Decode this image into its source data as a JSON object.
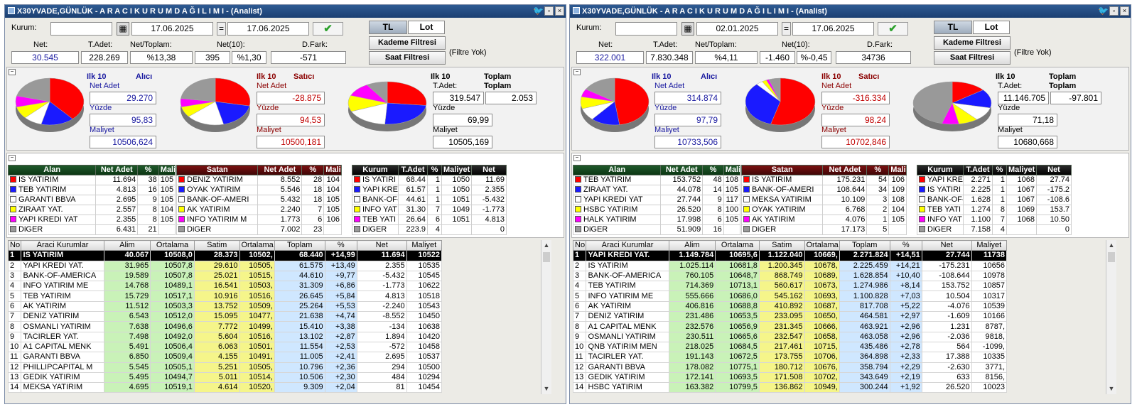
{
  "windows": [
    {
      "title": "X30YVADE,GÜNLÜK  -  A R A C I   K U R U M   D A Ğ I L I M I  - (Analist)",
      "kurum_label": "Kurum:",
      "date_from": "17.06.2025",
      "eq": "=",
      "date_to": "17.06.2025",
      "tl": "TL",
      "lot": "Lot",
      "kademe": "Kademe Filtresi",
      "saat": "Saat Filtresi",
      "filtre": "(Filtre Yok)",
      "stats": {
        "net_l": "Net:",
        "net": "30.545",
        "tadet_l": "T.Adet:",
        "tadet": "228.269",
        "nettop_l": "Net/Toplam:",
        "nettop": "%13,38",
        "net10_l": "Net(10):",
        "net10a": "395",
        "net10b": "%1,30",
        "dfark_l": "D.Fark:",
        "dfark": "-571"
      },
      "pies": {
        "alici": {
          "h1": "Ilk 10",
          "h2": "Alıcı",
          "na_l": "Net Adet",
          "na": "29.270",
          "y_l": "Yüzde",
          "y": "95,83",
          "m_l": "Maliyet",
          "m": "10506,624"
        },
        "satici": {
          "h1": "Ilk 10",
          "h2": "Satıcı",
          "na_l": "Net Adet",
          "na": "-28.875",
          "y_l": "Yüzde",
          "y": "94,53",
          "m_l": "Maliyet",
          "m": "10500,181"
        },
        "toplam": {
          "h1": "Ilk 10",
          "h2": "Toplam",
          "ta_l": "T.Adet:",
          "h3": "Toplam",
          "ta": "319.547",
          "tt": "2.053",
          "y_l": "Yüzde",
          "y": "69,99",
          "m_l": "Maliyet",
          "m": "10505,169"
        }
      },
      "alan_h": [
        "Alan",
        "Net Adet",
        "%",
        "Mali"
      ],
      "alan": [
        [
          "IS YATIRIM",
          "11.694",
          "38",
          "105"
        ],
        [
          "TEB YATIRIM",
          "4.813",
          "16",
          "105"
        ],
        [
          "GARANTI BBVA",
          "2.695",
          "9",
          "105"
        ],
        [
          "ZIRAAT YAT.",
          "2.557",
          "8",
          "104"
        ],
        [
          "YAPI KREDI YAT",
          "2.355",
          "8",
          "105"
        ],
        [
          "DiGER",
          "6.431",
          "21",
          ""
        ]
      ],
      "satan_h": [
        "Satan",
        "Net Adet",
        "%",
        "Mali"
      ],
      "satan": [
        [
          "DENIZ YATIRIM",
          "8.552",
          "28",
          "104"
        ],
        [
          "OYAK YATIRIM",
          "5.546",
          "18",
          "104"
        ],
        [
          "BANK-OF-AMERI",
          "5.432",
          "18",
          "105"
        ],
        [
          "AK YATIRIM",
          "2.240",
          "7",
          "105"
        ],
        [
          "INFO YATIRIM M",
          "1.773",
          "6",
          "106"
        ],
        [
          "DiGER",
          "7.002",
          "23",
          ""
        ]
      ],
      "kurum_h": [
        "Kurum",
        "T.Adet",
        "%",
        "Maliyet",
        "Net"
      ],
      "kurum": [
        [
          "IS YATIRI",
          "68.44",
          "1",
          "1050",
          "11.69"
        ],
        [
          "YAPI KRE",
          "61.57",
          "1",
          "1050",
          "2.355"
        ],
        [
          "BANK-OF-",
          "44.61",
          "1",
          "1051",
          "-5.432"
        ],
        [
          "INFO YAT",
          "31.30",
          "7",
          "1049",
          "-1.773"
        ],
        [
          "TEB YATI",
          "26.64",
          "6",
          "1051",
          "4.813"
        ],
        [
          "DiGER",
          "223.9",
          "4",
          "",
          "0"
        ]
      ],
      "list_h": [
        "No",
        "Araci Kurumlar",
        "Alim",
        "Ortalama",
        "Satim",
        "Ortalama",
        "Toplam",
        "%",
        "Net",
        "Maliyet"
      ],
      "list": [
        [
          "1",
          "IS YATIRIM",
          "40.067",
          "10508,0",
          "28.373",
          "10502,",
          "68.440",
          "+14,99",
          "11.694",
          "10522"
        ],
        [
          "2",
          "YAPI KREDI YAT.",
          "31.965",
          "10507,8",
          "29.610",
          "10505,",
          "61.575",
          "+13,49",
          "2.355",
          "10535"
        ],
        [
          "3",
          "BANK-OF-AMERICA",
          "19.589",
          "10507,8",
          "25.021",
          "10515,",
          "44.610",
          "+9,77",
          "-5.432",
          "10545"
        ],
        [
          "4",
          "INFO YATIRIM ME",
          "14.768",
          "10489,1",
          "16.541",
          "10503,",
          "31.309",
          "+6,86",
          "-1.773",
          "10622"
        ],
        [
          "5",
          "TEB YATIRIM",
          "15.729",
          "10517,1",
          "10.916",
          "10516,",
          "26.645",
          "+5,84",
          "4.813",
          "10518"
        ],
        [
          "6",
          "AK YATIRIM",
          "11.512",
          "10503,3",
          "13.752",
          "10509,",
          "25.264",
          "+5,53",
          "-2.240",
          "10543"
        ],
        [
          "7",
          "DENIZ YATIRIM",
          "6.543",
          "10512,0",
          "15.095",
          "10477,",
          "21.638",
          "+4,74",
          "-8.552",
          "10450"
        ],
        [
          "8",
          "OSMANLI YATIRIM",
          "7.638",
          "10496,6",
          "7.772",
          "10499,",
          "15.410",
          "+3,38",
          "-134",
          "10638"
        ],
        [
          "9",
          "TACIRLER YAT.",
          "7.498",
          "10492,0",
          "5.604",
          "10516,",
          "13.102",
          "+2,87",
          "1.894",
          "10420"
        ],
        [
          "10",
          "A1 CAPITAL MENK",
          "5.491",
          "10506,4",
          "6.063",
          "10501,",
          "11.554",
          "+2,53",
          "-572",
          "10458"
        ],
        [
          "11",
          "GARANTI BBVA",
          "6.850",
          "10509,4",
          "4.155",
          "10491,",
          "11.005",
          "+2,41",
          "2.695",
          "10537"
        ],
        [
          "12",
          "PHILLIPCAPITAL M",
          "5.545",
          "10505,1",
          "5.251",
          "10505,",
          "10.796",
          "+2,36",
          "294",
          "10500"
        ],
        [
          "13",
          "GEDIK YATIRIM",
          "5.495",
          "10494,7",
          "5.011",
          "10514,",
          "10.506",
          "+2,30",
          "484",
          "10294"
        ],
        [
          "14",
          "MEKSA YATIRIM",
          "4.695",
          "10519,1",
          "4.614",
          "10520,",
          "9.309",
          "+2,04",
          "81",
          "10454"
        ]
      ]
    },
    {
      "title": "X30YVADE,GÜNLÜK  -  A R A C I   K U R U M   D A Ğ I L I M I  - (Analist)",
      "kurum_label": "Kurum:",
      "date_from": "02.01.2025",
      "eq": "=",
      "date_to": "17.06.2025",
      "tl": "TL",
      "lot": "Lot",
      "kademe": "Kademe Filtresi",
      "saat": "Saat Filtresi",
      "filtre": "(Filtre Yok)",
      "stats": {
        "net_l": "Net:",
        "net": "322.001",
        "tadet_l": "T.Adet:",
        "tadet": "7.830.348",
        "nettop_l": "Net/Toplam:",
        "nettop": "%4,11",
        "net10_l": "Net(10):",
        "net10a": "-1.460",
        "net10b": "%-0,45",
        "dfark_l": "D.Fark:",
        "dfark": "34736"
      },
      "pies": {
        "alici": {
          "h1": "Ilk 10",
          "h2": "Alıcı",
          "na_l": "Net Adet",
          "na": "314.874",
          "y_l": "Yüzde",
          "y": "97,79",
          "m_l": "Maliyet",
          "m": "10733,506"
        },
        "satici": {
          "h1": "Ilk 10",
          "h2": "Satıcı",
          "na_l": "Net Adet",
          "na": "-316.334",
          "y_l": "Yüzde",
          "y": "98,24",
          "m_l": "Maliyet",
          "m": "10702,846"
        },
        "toplam": {
          "h1": "Ilk 10",
          "h2": "Toplam",
          "ta_l": "T.Adet:",
          "h3": "Toplam",
          "ta": "11.146.705",
          "tt": "-97.801",
          "y_l": "Yüzde",
          "y": "71,18",
          "m_l": "Maliyet",
          "m": "10680,668"
        }
      },
      "alan_h": [
        "Alan",
        "Net Adet",
        "%",
        "Mali"
      ],
      "alan": [
        [
          "TEB YATIRIM",
          "153.752",
          "48",
          "108"
        ],
        [
          "ZIRAAT YAT.",
          "44.078",
          "14",
          "105"
        ],
        [
          "YAPI KREDI YAT",
          "27.744",
          "9",
          "117"
        ],
        [
          "HSBC YATIRIM",
          "26.520",
          "8",
          "100"
        ],
        [
          "HALK YATIRIM",
          "17.998",
          "6",
          "105"
        ],
        [
          "DiGER",
          "51.909",
          "16",
          ""
        ]
      ],
      "satan_h": [
        "Satan",
        "Net Adet",
        "%",
        "Mali"
      ],
      "satan": [
        [
          "IS YATIRIM",
          "175.231",
          "54",
          "106"
        ],
        [
          "BANK-OF-AMERI",
          "108.644",
          "34",
          "109"
        ],
        [
          "MEKSA YATIRIM",
          "10.109",
          "3",
          "108"
        ],
        [
          "OYAK YATIRIM",
          "6.768",
          "2",
          "104"
        ],
        [
          "AK YATIRIM",
          "4.076",
          "1",
          "105"
        ],
        [
          "DiGER",
          "17.173",
          "5",
          ""
        ]
      ],
      "kurum_h": [
        "Kurum",
        "T.Adet",
        "%",
        "Maliyet",
        "Net"
      ],
      "kurum": [
        [
          "YAPI KRE",
          "2.271",
          "1",
          "1068",
          "27.74"
        ],
        [
          "IS YATIRI",
          "2.225",
          "1",
          "1067",
          "-175.2"
        ],
        [
          "BANK-OF-",
          "1.628",
          "1",
          "1067",
          "-108.6"
        ],
        [
          "TEB YATI",
          "1.274",
          "8",
          "1069",
          "153.7"
        ],
        [
          "INFO YAT",
          "1.100",
          "7",
          "1068",
          "10.50"
        ],
        [
          "DiGER",
          "7.158",
          "4",
          "",
          "0"
        ]
      ],
      "list_h": [
        "No",
        "Araci Kurumlar",
        "Alim",
        "Ortalama",
        "Satim",
        "Ortalama",
        "Toplam",
        "%",
        "Net",
        "Maliyet"
      ],
      "list": [
        [
          "1",
          "YAPI KREDI YAT.",
          "1.149.784",
          "10695,6",
          "1.122.040",
          "10669,",
          "2.271.824",
          "+14,51",
          "27.744",
          "11738"
        ],
        [
          "2",
          "IS YATIRIM",
          "1.025.114",
          "10681,8",
          "1.200.345",
          "10678,",
          "2.225.459",
          "+14,21",
          "-175.231",
          "10656"
        ],
        [
          "3",
          "BANK-OF-AMERICA",
          "760.105",
          "10648,7",
          "868.749",
          "10689,",
          "1.628.854",
          "+10,40",
          "-108.644",
          "10978"
        ],
        [
          "4",
          "TEB YATIRIM",
          "714.369",
          "10713,1",
          "560.617",
          "10673,",
          "1.274.986",
          "+8,14",
          "153.752",
          "10857"
        ],
        [
          "5",
          "INFO YATIRIM ME",
          "555.666",
          "10686,0",
          "545.162",
          "10693,",
          "1.100.828",
          "+7,03",
          "10.504",
          "10317"
        ],
        [
          "6",
          "AK YATIRIM",
          "406.816",
          "10688,8",
          "410.892",
          "10687,",
          "817.708",
          "+5,22",
          "-4.076",
          "10539"
        ],
        [
          "7",
          "DENIZ YATIRIM",
          "231.486",
          "10653,5",
          "233.095",
          "10650,",
          "464.581",
          "+2,97",
          "-1.609",
          "10166"
        ],
        [
          "8",
          "A1 CAPITAL MENK",
          "232.576",
          "10656,9",
          "231.345",
          "10666,",
          "463.921",
          "+2,96",
          "1.231",
          "8787,"
        ],
        [
          "9",
          "OSMANLI YATIRIM",
          "230.511",
          "10665,6",
          "232.547",
          "10658,",
          "463.058",
          "+2,96",
          "-2.036",
          "9818,"
        ],
        [
          "10",
          "QNB YATIRIM MEN",
          "218.025",
          "10684,5",
          "217.461",
          "10715,",
          "435.486",
          "+2,78",
          "564",
          "-1099,"
        ],
        [
          "11",
          "TACIRLER YAT.",
          "191.143",
          "10672,5",
          "173.755",
          "10706,",
          "364.898",
          "+2,33",
          "17.388",
          "10335"
        ],
        [
          "12",
          "GARANTI BBVA",
          "178.082",
          "10775,1",
          "180.712",
          "10676,",
          "358.794",
          "+2,29",
          "-2.630",
          "3771,"
        ],
        [
          "13",
          "GEDIK YATIRIM",
          "172.141",
          "10693,5",
          "171.508",
          "10702,",
          "343.649",
          "+2,19",
          "633",
          "8156,"
        ],
        [
          "14",
          "HSBC YATIRIM",
          "163.382",
          "10799,5",
          "136.862",
          "10949,",
          "300.244",
          "+1,92",
          "26.520",
          "10023"
        ]
      ]
    }
  ],
  "colors": {
    "red": "#ff0000",
    "blue": "#1a1aff",
    "white": "#ffffff",
    "yellow": "#ffff00",
    "magenta": "#ff00ff",
    "gray": "#999999"
  }
}
